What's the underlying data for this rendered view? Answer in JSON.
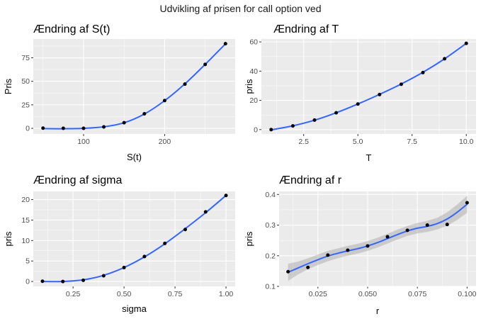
{
  "figure_title": "Udvikling af prisen for call option ved",
  "chart_data": [
    {
      "type": "scatter",
      "title": "Ændring af S(t)",
      "xlabel": "S(t)",
      "ylabel": "Pris",
      "xlim": [
        38,
        287
      ],
      "ylim": [
        -6,
        95
      ],
      "xticks": [
        100,
        200
      ],
      "xtick_labels": [
        "100",
        "200"
      ],
      "xticks_minor": [
        50,
        150,
        250
      ],
      "yticks": [
        0,
        25,
        50,
        75
      ],
      "ytick_labels": [
        "0",
        "25",
        "50",
        "75"
      ],
      "yticks_minor": [
        12.5,
        37.5,
        62.5,
        87.5
      ],
      "grid": true,
      "confidence_band": false,
      "series": [
        {
          "x": [
            50,
            75,
            100,
            125,
            150,
            175,
            200,
            225,
            250,
            275
          ],
          "y": [
            0.2,
            0.0,
            0.0,
            1.5,
            6.0,
            15.5,
            29.5,
            47.0,
            68.0,
            90.0
          ]
        }
      ],
      "smooth": {
        "x": [
          50,
          75,
          100,
          125,
          150,
          175,
          200,
          225,
          250,
          275
        ],
        "y": [
          -0.3,
          -0.4,
          0.0,
          1.6,
          5.9,
          15.2,
          29.4,
          47.3,
          68.0,
          89.8
        ]
      }
    },
    {
      "type": "scatter",
      "title": "Ændring af T",
      "xlabel": "T",
      "ylabel": "pris",
      "xlim": [
        0.55,
        10.45
      ],
      "ylim": [
        -3,
        62
      ],
      "xticks": [
        2.5,
        5.0,
        7.5,
        10.0
      ],
      "xtick_labels": [
        "2.5",
        "5.0",
        "7.5",
        "10.0"
      ],
      "xticks_minor": [
        1.25,
        3.75,
        6.25,
        8.75
      ],
      "yticks": [
        0,
        20,
        40,
        60
      ],
      "ytick_labels": [
        "0",
        "20",
        "40",
        "60"
      ],
      "yticks_minor": [
        10,
        30,
        50
      ],
      "grid": true,
      "confidence_band": false,
      "series": [
        {
          "x": [
            1,
            2,
            3,
            4,
            5,
            6,
            7,
            8,
            9,
            10
          ],
          "y": [
            0.0,
            2.5,
            6.5,
            11.5,
            17.5,
            24.0,
            31.0,
            39.0,
            48.5,
            59.0
          ]
        }
      ],
      "smooth": {
        "x": [
          1,
          2,
          3,
          4,
          5,
          6,
          7,
          8,
          9,
          10
        ],
        "y": [
          -0.2,
          2.6,
          6.4,
          11.5,
          17.5,
          24.1,
          31.2,
          39.2,
          48.4,
          59.0
        ]
      }
    },
    {
      "type": "scatter",
      "title": "Ændring af sigma",
      "xlabel": "sigma",
      "ylabel": "pris",
      "xlim": [
        0.055,
        1.045
      ],
      "ylim": [
        -1.2,
        22
      ],
      "xticks": [
        0.25,
        0.5,
        0.75,
        1.0
      ],
      "xtick_labels": [
        "0.25",
        "0.50",
        "0.75",
        "1.00"
      ],
      "xticks_minor": [
        0.125,
        0.375,
        0.625,
        0.875
      ],
      "yticks": [
        0,
        5,
        10,
        15,
        20
      ],
      "ytick_labels": [
        "0",
        "5",
        "10",
        "15",
        "20"
      ],
      "yticks_minor": [
        2.5,
        7.5,
        12.5,
        17.5
      ],
      "grid": true,
      "confidence_band": false,
      "series": [
        {
          "x": [
            0.1,
            0.2,
            0.3,
            0.4,
            0.5,
            0.6,
            0.7,
            0.8,
            0.9,
            1.0
          ],
          "y": [
            0.05,
            0.0,
            0.3,
            1.4,
            3.4,
            6.1,
            9.3,
            12.7,
            17.0,
            21.0
          ]
        }
      ],
      "smooth": {
        "x": [
          0.1,
          0.2,
          0.3,
          0.4,
          0.5,
          0.6,
          0.7,
          0.8,
          0.9,
          1.0
        ],
        "y": [
          0.0,
          0.0,
          0.4,
          1.5,
          3.4,
          6.0,
          9.2,
          12.9,
          16.8,
          21.0
        ]
      }
    },
    {
      "type": "scatter",
      "title": "Ændring af r",
      "xlabel": "r",
      "ylabel": "pris",
      "xlim": [
        0.0055,
        0.1045
      ],
      "ylim": [
        0.1,
        0.41
      ],
      "xticks": [
        0.025,
        0.05,
        0.075,
        0.1
      ],
      "xtick_labels": [
        "0.025",
        "0.050",
        "0.075",
        "0.100"
      ],
      "xticks_minor": [
        0.0125,
        0.0375,
        0.0625,
        0.0875
      ],
      "yticks": [
        0.1,
        0.2,
        0.3,
        0.4
      ],
      "ytick_labels": [
        "0.1",
        "0.2",
        "0.3",
        "0.4"
      ],
      "yticks_minor": [
        0.15,
        0.25,
        0.35
      ],
      "grid": true,
      "confidence_band": true,
      "series": [
        {
          "x": [
            0.01,
            0.02,
            0.03,
            0.04,
            0.05,
            0.06,
            0.07,
            0.08,
            0.09,
            0.1
          ],
          "y": [
            0.148,
            0.162,
            0.202,
            0.218,
            0.232,
            0.262,
            0.283,
            0.3,
            0.302,
            0.373
          ]
        }
      ],
      "smooth": {
        "x": [
          0.01,
          0.015,
          0.02,
          0.025,
          0.03,
          0.035,
          0.04,
          0.045,
          0.05,
          0.055,
          0.06,
          0.065,
          0.07,
          0.075,
          0.08,
          0.085,
          0.09,
          0.095,
          0.1
        ],
        "y": [
          0.146,
          0.16,
          0.174,
          0.187,
          0.199,
          0.208,
          0.216,
          0.223,
          0.232,
          0.243,
          0.256,
          0.269,
          0.281,
          0.29,
          0.296,
          0.305,
          0.32,
          0.342,
          0.368
        ],
        "lower": [
          0.118,
          0.139,
          0.156,
          0.17,
          0.182,
          0.192,
          0.2,
          0.207,
          0.216,
          0.227,
          0.24,
          0.253,
          0.265,
          0.273,
          0.278,
          0.286,
          0.298,
          0.317,
          0.34
        ],
        "upper": [
          0.174,
          0.181,
          0.192,
          0.204,
          0.216,
          0.224,
          0.232,
          0.239,
          0.248,
          0.259,
          0.272,
          0.285,
          0.297,
          0.307,
          0.314,
          0.324,
          0.342,
          0.367,
          0.396
        ]
      }
    }
  ]
}
